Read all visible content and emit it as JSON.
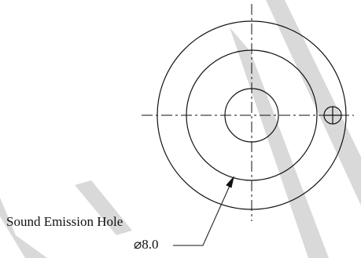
{
  "annotation": {
    "callout_text": "Sound Emission Hole",
    "dimension_text": "⌀8.0"
  },
  "colors": {
    "line": "#111111",
    "watermark": "#d9d9d9",
    "background": "#ffffff"
  },
  "icons": {
    "datum_symbol": "circle-cross-datum-icon"
  }
}
